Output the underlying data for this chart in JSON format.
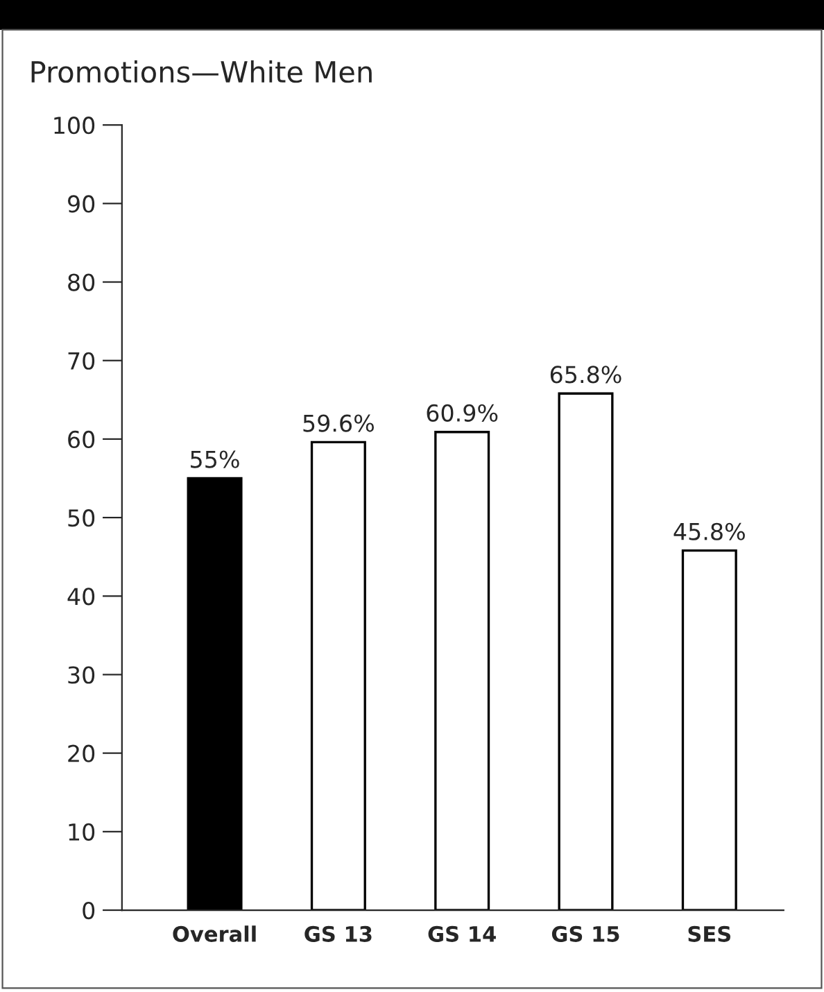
{
  "chart_data": {
    "type": "bar",
    "title": "Promotions—White Men",
    "categories": [
      "Overall",
      "GS 13",
      "GS 14",
      "GS 15",
      "SES"
    ],
    "values": [
      55,
      59.6,
      60.9,
      65.8,
      45.8
    ],
    "colors": [
      "#000000",
      "#ffffff",
      "#ffffff",
      "#ffffff",
      "#ffffff"
    ],
    "value_labels": [
      "55%",
      "59.6%",
      "60.9%",
      "65.8%",
      "45.8%"
    ],
    "ylim": [
      0,
      100
    ],
    "yticks": [
      0,
      10,
      20,
      30,
      40,
      50,
      60,
      70,
      80,
      90,
      100
    ],
    "grid": false,
    "legend": false
  }
}
